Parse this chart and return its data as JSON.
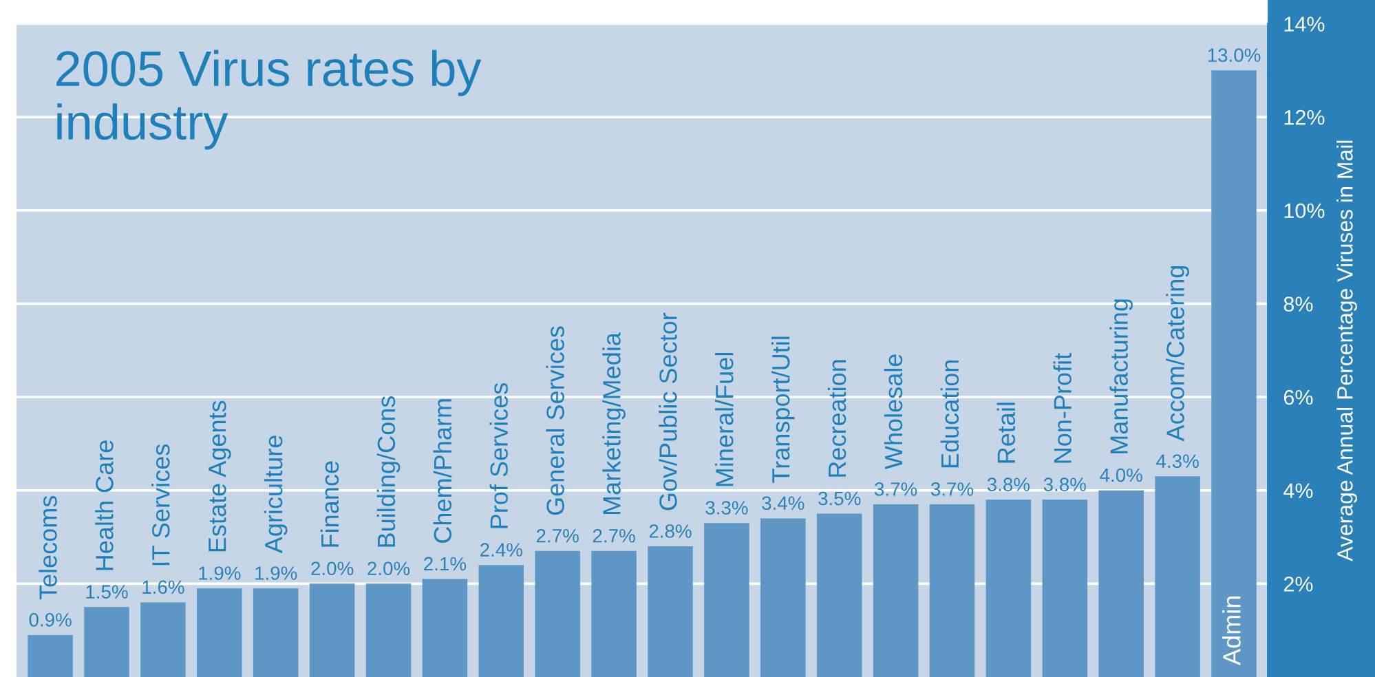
{
  "chart_data": {
    "type": "bar",
    "title": "2005 Virus rates by\nindustry",
    "categories": [
      "Telecoms",
      "Health Care",
      "IT Services",
      "Estate Agents",
      "Agriculture",
      "Finance",
      "Building/Cons",
      "Chem/Pharm",
      "Prof Services",
      "General Services",
      "Marketing/Media",
      "Gov/Public Sector",
      "Mineral/Fuel",
      "Transport/Util",
      "Recreation",
      "Wholesale",
      "Education",
      "Retail",
      "Non-Profit",
      "Manufacturing",
      "Accom/Catering",
      "Admin"
    ],
    "values": [
      0.9,
      1.5,
      1.6,
      1.9,
      1.9,
      2.0,
      2.0,
      2.1,
      2.4,
      2.7,
      2.7,
      2.8,
      3.3,
      3.4,
      3.5,
      3.7,
      3.7,
      3.8,
      3.8,
      4.0,
      4.3,
      13.0
    ],
    "value_labels": [
      "0.9%",
      "1.5%",
      "1.6%",
      "1.9%",
      "1.9%",
      "2.0%",
      "2.0%",
      "2.1%",
      "2.4%",
      "2.7%",
      "2.7%",
      "2.8%",
      "3.3%",
      "3.4%",
      "3.5%",
      "3.7%",
      "3.7%",
      "3.8%",
      "3.8%",
      "4.0%",
      "4.3%",
      "13.0%"
    ],
    "color": "#5e97c5",
    "ylabel": "Average Annual Percentage Viruses in Mail",
    "ylim": [
      0,
      14
    ],
    "yticks": [
      {
        "value": 2,
        "label": "2%"
      },
      {
        "value": 4,
        "label": "4%"
      },
      {
        "value": 6,
        "label": "6%"
      },
      {
        "value": 8,
        "label": "8%"
      },
      {
        "value": 10,
        "label": "10%"
      },
      {
        "value": 12,
        "label": "12%"
      },
      {
        "value": 14,
        "label": "14%"
      }
    ],
    "grid": "y"
  }
}
